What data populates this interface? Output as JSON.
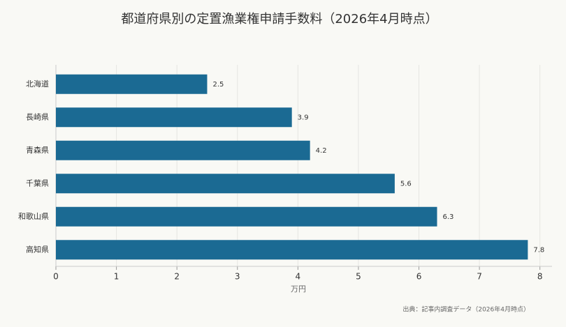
{
  "chart_data": {
    "type": "hbar",
    "title": "都道府県別の定置漁業権申請手数料（2026年4月時点）",
    "categories": [
      "北海道",
      "長崎県",
      "青森県",
      "千葉県",
      "和歌山県",
      "高知県"
    ],
    "values": [
      2.5,
      3.9,
      4.2,
      5.6,
      6.3,
      7.8
    ],
    "color": "#1b6a93",
    "xlim": [
      0,
      8.2
    ],
    "xticks": [
      0,
      1,
      2,
      3,
      4,
      5,
      6,
      7,
      8
    ],
    "xlabel": "万円",
    "grid": true,
    "source": "出典：記事内調査データ（2026年4月時点）"
  }
}
